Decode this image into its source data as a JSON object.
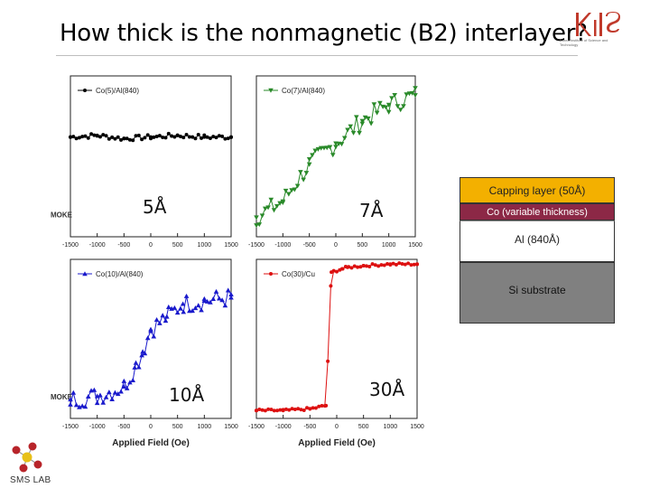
{
  "title": "How thick is the nonmagnetic (B2) interlayer?",
  "logo": {
    "mark": "KIST",
    "subtitle": "Korea Institute of Science and Technology"
  },
  "footer": {
    "lab": "SMS LAB"
  },
  "layer_stack": [
    {
      "label": "Capping layer (50Å)",
      "color": "#f3b000"
    },
    {
      "label": "Co (variable thickness)",
      "color": "#8c2846"
    },
    {
      "label": "Al (840Å)",
      "color": "#ffffff"
    },
    {
      "label": "Si substrate",
      "color": "#808080"
    }
  ],
  "chart_data": [
    {
      "type": "line",
      "legend": "Co(5)/Al(840)",
      "annotation": "5Å",
      "color": "#000000",
      "marker": "circle",
      "xlim": [
        -1500,
        1500
      ],
      "xticks": [
        "-1500",
        "-1000",
        "-500",
        "0",
        "500",
        "1000",
        "1500"
      ],
      "xlabel": "",
      "ylabel": "MOKE",
      "x": [
        -1500,
        -1000,
        -500,
        0,
        500,
        1000,
        1500
      ],
      "y": [
        0.62,
        0.63,
        0.61,
        0.62,
        0.63,
        0.62,
        0.62
      ]
    },
    {
      "type": "line",
      "legend": "Co(7)/Al(840)",
      "annotation": "7Å",
      "color": "#2a8a2a",
      "marker": "triangle-down",
      "xlim": [
        -1500,
        1500
      ],
      "xticks": [
        "-1500",
        "-1000",
        "-500",
        "0",
        "500",
        "1000",
        "1500"
      ],
      "xlabel": "",
      "ylabel": "",
      "x": [
        -1500,
        -1000,
        -500,
        0,
        500,
        1000,
        1500
      ],
      "y": [
        0.12,
        0.22,
        0.45,
        0.58,
        0.72,
        0.82,
        0.88
      ]
    },
    {
      "type": "line",
      "legend": "Co(10)/Al(840)",
      "annotation": "10Å",
      "color": "#1a1acc",
      "marker": "triangle-up",
      "xlim": [
        -1500,
        1500
      ],
      "xticks": [
        "-1500",
        "-1000",
        "-500",
        "0",
        "500",
        "1000",
        "1500"
      ],
      "xlabel": "Applied Field (Oe)",
      "ylabel": "MOKE",
      "x": [
        -1500,
        -1000,
        -500,
        -300,
        -150,
        0,
        300,
        600,
        1000,
        1500
      ],
      "y": [
        0.12,
        0.14,
        0.2,
        0.32,
        0.42,
        0.56,
        0.64,
        0.72,
        0.74,
        0.76
      ]
    },
    {
      "type": "line",
      "legend": "Co(30)/Cu",
      "annotation": "30Å",
      "color": "#dd1010",
      "marker": "circle",
      "xlim": [
        -1500,
        1500
      ],
      "xticks": [
        "-1500",
        "-1000",
        "-500",
        "0",
        "500",
        "1000",
        "1500"
      ],
      "xlabel": "Applied Field (Oe)",
      "ylabel": "",
      "x": [
        -1500,
        -1000,
        -500,
        -200,
        -100,
        100,
        200,
        500,
        1000,
        1500
      ],
      "y": [
        0.05,
        0.05,
        0.06,
        0.08,
        0.92,
        0.94,
        0.95,
        0.96,
        0.97,
        0.97
      ]
    }
  ]
}
